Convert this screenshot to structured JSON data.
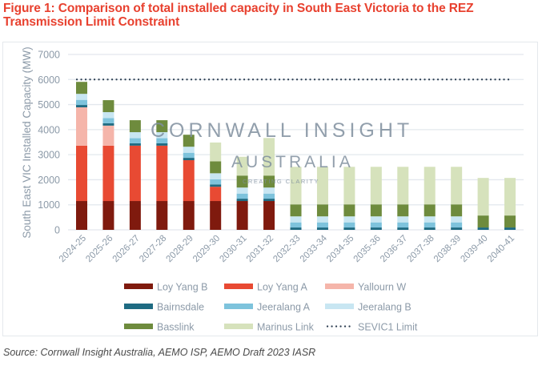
{
  "figure": {
    "title": "Figure 1: Comparison of total installed capacity in South East Victoria to the REZ Transmission Limit Constraint",
    "source": "Source: Cornwall Insight Australia, AEMO ISP, AEMO Draft 2023 IASR"
  },
  "watermark": {
    "line1": "CORNWALL INSIGHT",
    "line2": "AUSTRALIA",
    "line3": "CREATING CLARITY"
  },
  "chart_data": {
    "type": "bar",
    "stacked": true,
    "title": "",
    "xlabel": "",
    "ylabel": "South East VIC Installed Capacity (MW)",
    "ylim": [
      0,
      7000
    ],
    "yticks": [
      0,
      1000,
      2000,
      3000,
      4000,
      5000,
      6000,
      7000
    ],
    "grid": true,
    "legend_position": "bottom",
    "categories": [
      "2024-25",
      "2025-26",
      "2026-27",
      "2027-28",
      "2028-29",
      "2029-30",
      "2030-31",
      "2031-32",
      "2032-33",
      "2033-34",
      "2034-35",
      "2035-36",
      "2036-37",
      "2037-38",
      "2038-39",
      "2039-40",
      "2040-41"
    ],
    "series": [
      {
        "name": "Loy Yang B",
        "color": "#7f1a0e",
        "values": [
          1150,
          1150,
          1150,
          1150,
          1150,
          1150,
          1150,
          1150,
          0,
          0,
          0,
          0,
          0,
          0,
          0,
          0,
          0
        ]
      },
      {
        "name": "Loy Yang A",
        "color": "#e84a33",
        "values": [
          2210,
          2210,
          2210,
          2210,
          1630,
          570,
          0,
          0,
          0,
          0,
          0,
          0,
          0,
          0,
          0,
          0,
          0
        ]
      },
      {
        "name": "Yallourn W",
        "color": "#f5b5aa",
        "values": [
          1530,
          800,
          0,
          0,
          0,
          0,
          0,
          0,
          0,
          0,
          0,
          0,
          0,
          0,
          0,
          0,
          0
        ]
      },
      {
        "name": "Bairnsdale",
        "color": "#1f6b82",
        "values": [
          94,
          94,
          94,
          94,
          94,
          94,
          94,
          94,
          94,
          94,
          94,
          94,
          94,
          94,
          94,
          94,
          94
        ]
      },
      {
        "name": "Jeeralang A",
        "color": "#7ec3dc",
        "values": [
          204,
          204,
          204,
          204,
          204,
          204,
          204,
          204,
          204,
          204,
          204,
          204,
          204,
          204,
          204,
          0,
          0
        ]
      },
      {
        "name": "Jeeralang B",
        "color": "#c8e6f2",
        "values": [
          240,
          240,
          240,
          240,
          240,
          240,
          240,
          240,
          240,
          240,
          240,
          240,
          240,
          240,
          240,
          0,
          0
        ]
      },
      {
        "name": "Basslink",
        "color": "#6e8b3d",
        "values": [
          478,
          478,
          478,
          478,
          478,
          478,
          478,
          478,
          478,
          478,
          478,
          478,
          478,
          478,
          478,
          478,
          478
        ]
      },
      {
        "name": "Marinus Link",
        "color": "#d6e2bc",
        "values": [
          0,
          0,
          0,
          0,
          0,
          750,
          750,
          1500,
          1500,
          1500,
          1500,
          1500,
          1500,
          1500,
          1500,
          1500,
          1500
        ]
      }
    ],
    "lines": [
      {
        "name": "SEVIC1 Limit",
        "style": "dotted",
        "color": "#2e3f52",
        "value": 6000
      }
    ]
  }
}
